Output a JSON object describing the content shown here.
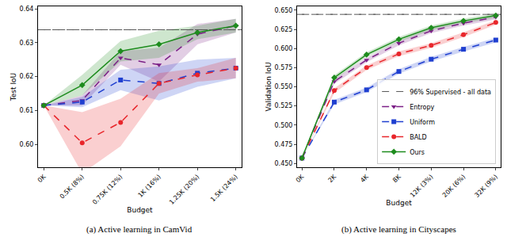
{
  "chart_data": [
    {
      "type": "line",
      "title": "(a) Active learning in CamVid",
      "x_label": "Budget",
      "y_label": "Test IoU",
      "categories": [
        "0K",
        "0.5K (8%)",
        "0.75K (12%)",
        "1K (16%)",
        "1.25K (20%)",
        "1.5K (24%)"
      ],
      "ylim": [
        0.5933,
        0.6407
      ],
      "yticks": [
        {
          "value": 0.6,
          "label": "0.60"
        },
        {
          "value": 0.61,
          "label": "0.61"
        },
        {
          "value": 0.62,
          "label": "0.62"
        },
        {
          "value": 0.63,
          "label": "0.63"
        },
        {
          "value": 0.64,
          "label": "0.64"
        }
      ],
      "grid": false,
      "reference": {
        "name": "96% Supervised - all data",
        "value": 0.6338,
        "color": "#555555",
        "line_style": "dash"
      },
      "series": [
        {
          "name": "Entropy",
          "color": "#7b1f86",
          "marker": "triangle-down",
          "line_style": "dash",
          "values": [
            0.6115,
            0.613,
            0.6255,
            0.6235,
            0.6325,
            0.635
          ],
          "std": [
            0,
            0.0015,
            0.002,
            0.005,
            0.003,
            0.002
          ]
        },
        {
          "name": "Uniform",
          "color": "#1f3fd0",
          "marker": "square",
          "line_style": "dash",
          "values": [
            0.6115,
            0.6125,
            0.619,
            0.618,
            0.621,
            0.6225
          ],
          "std": [
            0,
            0.0015,
            0.003,
            0.005,
            0.004,
            0.003
          ]
        },
        {
          "name": "BALD",
          "color": "#e8262b",
          "marker": "circle",
          "line_style": "dash",
          "values": [
            0.6115,
            0.6005,
            0.6065,
            0.618,
            0.6205,
            0.6225
          ],
          "std": [
            0,
            0.009,
            0.007,
            0.003,
            0.002,
            0.003
          ]
        },
        {
          "name": "Ours",
          "color": "#1e8c1e",
          "marker": "diamond",
          "line_style": "solid",
          "values": [
            0.6115,
            0.6175,
            0.6275,
            0.6295,
            0.633,
            0.635
          ],
          "std": [
            0,
            0.003,
            0.003,
            0.004,
            0.002,
            0.002
          ]
        }
      ]
    },
    {
      "type": "line",
      "title": "(b) Active learning in Cityscapes",
      "x_label": "Budget",
      "y_label": "Validation IoU",
      "categories": [
        "0K",
        "2K",
        "4K",
        "8K",
        "12K (3%)",
        "20K (6%)",
        "32K (9%)"
      ],
      "ylim": [
        0.445,
        0.655
      ],
      "yticks": [
        {
          "value": 0.45,
          "label": "0.450"
        },
        {
          "value": 0.475,
          "label": "0.475"
        },
        {
          "value": 0.5,
          "label": "0.500"
        },
        {
          "value": 0.525,
          "label": "0.525"
        },
        {
          "value": 0.55,
          "label": "0.550"
        },
        {
          "value": 0.575,
          "label": "0.575"
        },
        {
          "value": 0.6,
          "label": "0.600"
        },
        {
          "value": 0.625,
          "label": "0.625"
        },
        {
          "value": 0.65,
          "label": "0.650"
        }
      ],
      "grid": false,
      "legend": "lower right",
      "reference": {
        "name": "96% Supervised - all data",
        "value": 0.6445,
        "color": "#555555",
        "line_style": "dash"
      },
      "series": [
        {
          "name": "Entropy",
          "color": "#7b1f86",
          "marker": "triangle-down",
          "line_style": "dash",
          "values": [
            0.457,
            0.557,
            0.585,
            0.607,
            0.623,
            0.633,
            0.641
          ],
          "std": [
            0,
            0.003,
            0.003,
            0.003,
            0.003,
            0.003,
            0.003
          ]
        },
        {
          "name": "Uniform",
          "color": "#1f3fd0",
          "marker": "square",
          "line_style": "dash",
          "values": [
            0.457,
            0.53,
            0.546,
            0.57,
            0.586,
            0.599,
            0.611
          ],
          "std": [
            0,
            0.003,
            0.003,
            0.003,
            0.003,
            0.003,
            0.003
          ]
        },
        {
          "name": "BALD",
          "color": "#e8262b",
          "marker": "circle",
          "line_style": "dash",
          "values": [
            0.457,
            0.545,
            0.575,
            0.593,
            0.604,
            0.618,
            0.634
          ],
          "std": [
            0,
            0.003,
            0.003,
            0.003,
            0.003,
            0.003,
            0.003
          ]
        },
        {
          "name": "Ours",
          "color": "#1e8c1e",
          "marker": "diamond",
          "line_style": "solid",
          "values": [
            0.457,
            0.562,
            0.592,
            0.612,
            0.627,
            0.636,
            0.643
          ],
          "std": [
            0,
            0.003,
            0.003,
            0.003,
            0.003,
            0.003,
            0.003
          ]
        }
      ]
    }
  ]
}
